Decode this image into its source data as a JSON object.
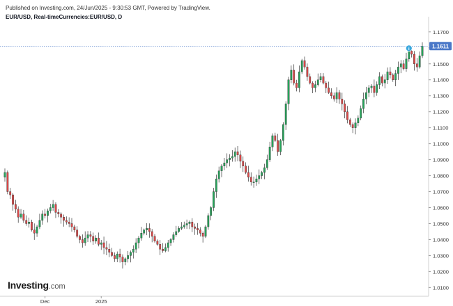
{
  "header": {
    "published": "Published on Investing.com, 24/Jun/2025 - 9:30:53 GMT, Powered by TradingView.",
    "symbol": "EUR/USD, Real-timeCurrencies:EUR/USD, D"
  },
  "logo": {
    "name": "Investing",
    "domain": ".com"
  },
  "colors": {
    "up": "#26a65b",
    "down": "#e04848",
    "wick": "#333333",
    "price_line": "#4a78c8",
    "last_label_bg": "#4a78c8",
    "axis": "#d0d0d0",
    "event_icon": "#3aa7dd"
  },
  "chart_data": {
    "type": "candlestick",
    "title": "",
    "xlabel": "",
    "ylabel": "",
    "ylim": [
      1.0045,
      1.1795
    ],
    "y_ticks": [
      "1.0100",
      "1.0200",
      "1.0300",
      "1.0400",
      "1.0500",
      "1.0600",
      "1.0700",
      "1.0800",
      "1.0900",
      "1.1000",
      "1.1100",
      "1.1200",
      "1.1300",
      "1.1400",
      "1.1500",
      "1.1600",
      "1.1700"
    ],
    "x_labels": [
      {
        "label": "Dec",
        "bar": 15
      },
      {
        "label": "2025",
        "bar": 36
      }
    ],
    "last_price": "1.1611",
    "event_marker": {
      "label": "i",
      "bar": 151
    },
    "close": [
      1.082,
      1.07,
      1.068,
      1.062,
      1.059,
      1.054,
      1.056,
      1.052,
      1.05,
      1.051,
      1.046,
      1.044,
      1.048,
      1.052,
      1.056,
      1.055,
      1.058,
      1.06,
      1.062,
      1.057,
      1.056,
      1.054,
      1.052,
      1.051,
      1.05,
      1.048,
      1.046,
      1.042,
      1.04,
      1.038,
      1.041,
      1.043,
      1.042,
      1.039,
      1.041,
      1.037,
      1.038,
      1.035,
      1.034,
      1.032,
      1.03,
      1.028,
      1.031,
      1.029,
      1.026,
      1.028,
      1.03,
      1.032,
      1.034,
      1.038,
      1.041,
      1.044,
      1.046,
      1.047,
      1.045,
      1.042,
      1.039,
      1.037,
      1.034,
      1.033,
      1.035,
      1.038,
      1.04,
      1.043,
      1.045,
      1.047,
      1.048,
      1.049,
      1.05,
      1.051,
      1.048,
      1.047,
      1.046,
      1.044,
      1.042,
      1.048,
      1.055,
      1.06,
      1.07,
      1.078,
      1.083,
      1.086,
      1.088,
      1.09,
      1.091,
      1.092,
      1.095,
      1.093,
      1.089,
      1.086,
      1.082,
      1.079,
      1.076,
      1.076,
      1.078,
      1.08,
      1.082,
      1.085,
      1.09,
      1.098,
      1.105,
      1.102,
      1.095,
      1.102,
      1.112,
      1.125,
      1.14,
      1.146,
      1.138,
      1.135,
      1.145,
      1.152,
      1.148,
      1.142,
      1.138,
      1.135,
      1.137,
      1.14,
      1.142,
      1.138,
      1.135,
      1.132,
      1.13,
      1.128,
      1.132,
      1.128,
      1.125,
      1.12,
      1.115,
      1.112,
      1.11,
      1.113,
      1.116,
      1.122,
      1.128,
      1.132,
      1.135,
      1.136,
      1.132,
      1.137,
      1.142,
      1.138,
      1.14,
      1.145,
      1.143,
      1.14,
      1.144,
      1.148,
      1.15,
      1.147,
      1.153,
      1.158,
      1.156,
      1.15,
      1.148,
      1.155,
      1.1611
    ]
  }
}
